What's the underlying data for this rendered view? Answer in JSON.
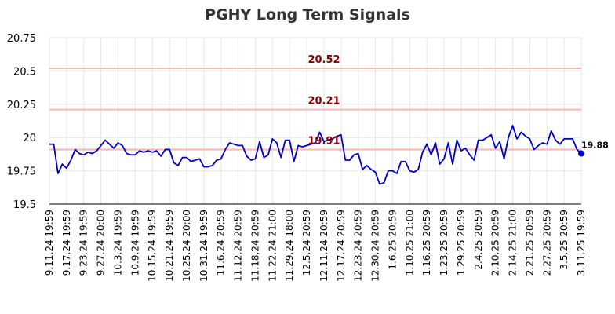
{
  "chart_data": {
    "type": "line",
    "title": "PGHY Long Term Signals",
    "xlabel": "",
    "ylabel": "",
    "ylim": [
      19.5,
      20.75
    ],
    "yticks": [
      {
        "value": 19.5,
        "label": "19.5"
      },
      {
        "value": 19.75,
        "label": "19.75"
      },
      {
        "value": 20,
        "label": "20"
      },
      {
        "value": 20.25,
        "label": "20.25"
      },
      {
        "value": 20.5,
        "label": "20.5"
      },
      {
        "value": 20.75,
        "label": "20.75"
      }
    ],
    "grid": true,
    "legend": "none",
    "line_color": "#0000cc",
    "reference_color": "#ffb3b3",
    "reference_label_color": "#8b0000",
    "reference_lines": [
      {
        "value": 20.52,
        "label": "20.52"
      },
      {
        "value": 20.21,
        "label": "20.21"
      },
      {
        "value": 19.91,
        "label": "19.91"
      }
    ],
    "last_value_label": "19.88",
    "x_tick_labels": [
      {
        "index": 0,
        "label": "9.11.24 19:59"
      },
      {
        "index": 4,
        "label": "9.17.24 19:59"
      },
      {
        "index": 8,
        "label": "9.23.24 19:59"
      },
      {
        "index": 12,
        "label": "9.27.24 20:00"
      },
      {
        "index": 16,
        "label": "10.3.24 19:59"
      },
      {
        "index": 20,
        "label": "10.9.24 19:59"
      },
      {
        "index": 24,
        "label": "10.15.24 19:59"
      },
      {
        "index": 28,
        "label": "10.21.24 19:59"
      },
      {
        "index": 32,
        "label": "10.25.24 20:00"
      },
      {
        "index": 36,
        "label": "10.31.24 19:59"
      },
      {
        "index": 40,
        "label": "11.6.24 20:59"
      },
      {
        "index": 44,
        "label": "11.12.24 20:59"
      },
      {
        "index": 48,
        "label": "11.18.24 20:59"
      },
      {
        "index": 52,
        "label": "11.22.24 21:00"
      },
      {
        "index": 56,
        "label": "11.29.24 18:00"
      },
      {
        "index": 60,
        "label": "12.5.24 20:59"
      },
      {
        "index": 64,
        "label": "12.11.24 20:59"
      },
      {
        "index": 68,
        "label": "12.17.24 20:59"
      },
      {
        "index": 72,
        "label": "12.23.24 20:59"
      },
      {
        "index": 76,
        "label": "12.30.24 20:59"
      },
      {
        "index": 80,
        "label": "1.6.25 20:59"
      },
      {
        "index": 84,
        "label": "1.10.25 21:00"
      },
      {
        "index": 88,
        "label": "1.16.25 20:59"
      },
      {
        "index": 92,
        "label": "1.23.25 20:59"
      },
      {
        "index": 96,
        "label": "1.29.25 20:59"
      },
      {
        "index": 100,
        "label": "2.4.25 20:59"
      },
      {
        "index": 104,
        "label": "2.10.25 20:59"
      },
      {
        "index": 108,
        "label": "2.14.25 21:00"
      },
      {
        "index": 112,
        "label": "2.21.25 20:59"
      },
      {
        "index": 116,
        "label": "2.27.25 20:59"
      },
      {
        "index": 120,
        "label": "3.5.25 20:59"
      },
      {
        "index": 124,
        "label": "3.11.25 19:59"
      }
    ],
    "series": [
      {
        "values": [
          19.95,
          19.95,
          19.73,
          19.8,
          19.77,
          19.83,
          19.91,
          19.88,
          19.87,
          19.89,
          19.88,
          19.9,
          19.94,
          19.98,
          19.95,
          19.92,
          19.96,
          19.94,
          19.88,
          19.87,
          19.87,
          19.9,
          19.89,
          19.9,
          19.89,
          19.9,
          19.86,
          19.91,
          19.91,
          19.81,
          19.79,
          19.85,
          19.85,
          19.82,
          19.83,
          19.84,
          19.78,
          19.78,
          19.79,
          19.83,
          19.84,
          19.91,
          19.96,
          19.95,
          19.94,
          19.94,
          19.86,
          19.83,
          19.84,
          19.97,
          19.85,
          19.87,
          19.99,
          19.96,
          19.85,
          19.98,
          19.98,
          19.82,
          19.94,
          19.93,
          19.94,
          19.95,
          19.96,
          20.04,
          19.97,
          19.98,
          19.99,
          20.01,
          20.02,
          19.83,
          19.83,
          19.87,
          19.88,
          19.76,
          19.79,
          19.76,
          19.74,
          19.65,
          19.66,
          19.75,
          19.75,
          19.73,
          19.82,
          19.82,
          19.75,
          19.74,
          19.76,
          19.89,
          19.95,
          19.87,
          19.96,
          19.8,
          19.84,
          19.96,
          19.8,
          19.98,
          19.9,
          19.92,
          19.87,
          19.83,
          19.98,
          19.98,
          20.0,
          20.02,
          19.92,
          19.97,
          19.84,
          20.0,
          20.09,
          19.99,
          20.04,
          20.01,
          19.99,
          19.91,
          19.94,
          19.96,
          19.95,
          20.05,
          19.98,
          19.95,
          19.99,
          19.99,
          19.99,
          19.91,
          19.88
        ]
      }
    ]
  }
}
